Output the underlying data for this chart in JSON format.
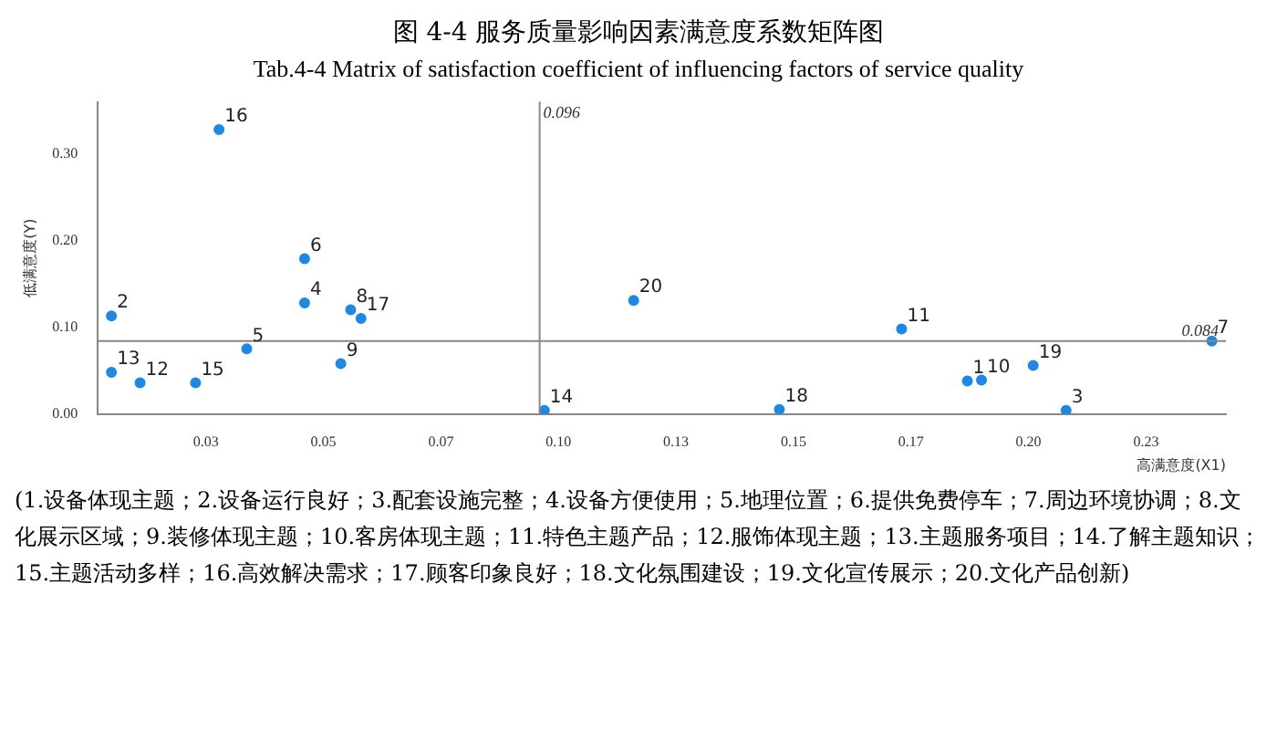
{
  "chart_data": {
    "type": "scatter",
    "title": "图 4-4 服务质量影响因素满意度系数矩阵图",
    "subtitle": "Tab.4-4 Matrix of satisfaction coefficient of influencing factors of service quality",
    "xlabel": "高满意度(X1)",
    "ylabel": "低满意度(Y)",
    "x": [
      0.187,
      0.0049,
      0.208,
      0.046,
      0.0337,
      0.046,
      0.239,
      0.0558,
      0.0537,
      0.19,
      0.173,
      0.011,
      0.0049,
      0.097,
      0.0228,
      0.0278,
      0.058,
      0.147,
      0.201,
      0.116
    ],
    "series": [
      {
        "color": "#1e88e5",
        "values": [
          0.038,
          0.113,
          0.004,
          0.128,
          0.075,
          0.179,
          0.084,
          0.12,
          0.058,
          0.039,
          0.098,
          0.036,
          0.048,
          0.004,
          0.036,
          0.328,
          0.11,
          0.005,
          0.056,
          0.131
        ]
      }
    ],
    "xlim": [
      0.002,
      0.242
    ],
    "xticks": [
      {
        "value": 0.025,
        "label": "0.03"
      },
      {
        "value": 0.05,
        "label": "0.05"
      },
      {
        "value": 0.075,
        "label": "0.07"
      },
      {
        "value": 0.1,
        "label": "0.10"
      },
      {
        "value": 0.125,
        "label": "0.13"
      },
      {
        "value": 0.15,
        "label": "0.15"
      },
      {
        "value": 0.175,
        "label": "0.17"
      },
      {
        "value": 0.2,
        "label": "0.20"
      },
      {
        "value": 0.225,
        "label": "0.23"
      }
    ],
    "ylim": [
      0,
      0.36
    ],
    "yticks": [
      {
        "value": 0,
        "label": "0.00"
      },
      {
        "value": 0.1,
        "label": "0.10"
      },
      {
        "value": 0.2,
        "label": "0.20"
      },
      {
        "value": 0.3,
        "label": "0.30"
      }
    ],
    "ref_lines": [
      {
        "axis": "x",
        "value": 0.096,
        "label": "0.096",
        "color": "#888888"
      },
      {
        "axis": "y",
        "value": 0.084,
        "label": "0.084",
        "color": "#888888"
      }
    ],
    "grid": false,
    "legend": false,
    "marker": "circle",
    "annotations": [
      {
        "text": "1",
        "x": 0.187,
        "y": 0.038
      },
      {
        "text": "2",
        "x": 0.0049,
        "y": 0.113
      },
      {
        "text": "3",
        "x": 0.208,
        "y": 0.004
      },
      {
        "text": "4",
        "x": 0.046,
        "y": 0.128
      },
      {
        "text": "5",
        "x": 0.0337,
        "y": 0.075
      },
      {
        "text": "6",
        "x": 0.046,
        "y": 0.179
      },
      {
        "text": "7",
        "x": 0.239,
        "y": 0.084
      },
      {
        "text": "8",
        "x": 0.0558,
        "y": 0.12
      },
      {
        "text": "9",
        "x": 0.0537,
        "y": 0.058
      },
      {
        "text": "10",
        "x": 0.19,
        "y": 0.039
      },
      {
        "text": "11",
        "x": 0.173,
        "y": 0.098
      },
      {
        "text": "12",
        "x": 0.011,
        "y": 0.036
      },
      {
        "text": "13",
        "x": 0.0049,
        "y": 0.048
      },
      {
        "text": "14",
        "x": 0.097,
        "y": 0.004
      },
      {
        "text": "15",
        "x": 0.0228,
        "y": 0.036
      },
      {
        "text": "16",
        "x": 0.0278,
        "y": 0.328
      },
      {
        "text": "17",
        "x": 0.058,
        "y": 0.11
      },
      {
        "text": "18",
        "x": 0.147,
        "y": 0.005
      },
      {
        "text": "19",
        "x": 0.201,
        "y": 0.056
      },
      {
        "text": "20",
        "x": 0.116,
        "y": 0.131
      },
      "(1.设备体现主题；2.设备运行良好；3.配套设施完整；4.设备方便使用；5.地理位置；6.提供免费停车；7.周边环境协调；8.文化展示区域；9.装修体现主题；10.客房体现主题；11.特色主题产品；12.服饰体现主题；13.主题服务项目；14.了解主题知识；15.主题活动多样；16.高效解决需求；17.顾客印象良好；18.文化氛围建设；19.文化宣传展示；20.文化产品创新)"
    ]
  }
}
